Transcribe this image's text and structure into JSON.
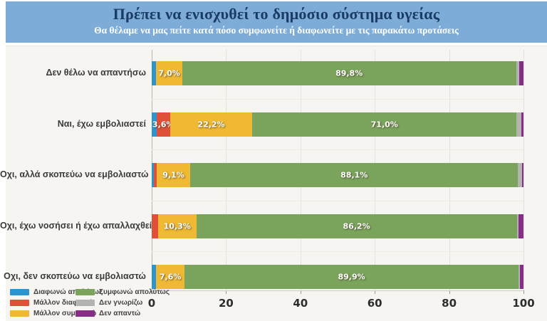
{
  "header": {
    "title": "Πρέπει να ενισχυθεί το δημόσιο σύστημα υγείας",
    "subtitle": "Θα θέλαμε να μας πείτε κατά πόσο συμφωνείτε ή διαφωνείτε με τις παρακάτω προτάσεις",
    "band_color": "#7CACD7",
    "title_color": "#1A3C64",
    "subtitle_color": "#FFFFFF"
  },
  "chart_data": {
    "type": "bar",
    "orientation": "horizontal_stacked",
    "title": "Πρέπει να ενισχυθεί το δημόσιο σύστημα υγείας",
    "xlabel": "",
    "ylabel": "",
    "xlim": [
      0,
      100
    ],
    "x_ticks": [
      0,
      20,
      40,
      60,
      80,
      100
    ],
    "grid": true,
    "legend_position": "bottom-left",
    "categories": [
      "Δεν θέλω να απαντήσω",
      "Ναι, έχω εμβολιαστεί",
      "Οχι, αλλά σκοπεύω να εμβολιαστώ",
      "Οχι, έχω νοσήσει ή έχω απαλλαχθεί",
      "Οχι, δεν σκοπεύω να εμβολιαστώ"
    ],
    "series": [
      {
        "name": "Διαφωνώ απολύτως",
        "color": "#2C95CF",
        "values": [
          1.2,
          1.3,
          0.5,
          0.0,
          1.2
        ]
      },
      {
        "name": "Μάλλον διαφωνώ",
        "color": "#E05039",
        "values": [
          0.0,
          3.6,
          0.8,
          1.7,
          0.0
        ]
      },
      {
        "name": "Μάλλον συμφωνώ",
        "color": "#EFB933",
        "values": [
          7.0,
          22.2,
          9.1,
          10.3,
          7.6
        ]
      },
      {
        "name": "Συμφωνώ απολύτως",
        "color": "#7AA45B",
        "values": [
          89.8,
          71.0,
          88.1,
          86.2,
          89.9
        ]
      },
      {
        "name": "Δεν γνωρίζω",
        "color": "#B3B3B2",
        "values": [
          0.8,
          1.4,
          1.2,
          0.5,
          0.3
        ]
      },
      {
        "name": "Δεν απαντώ",
        "color": "#852D87",
        "values": [
          1.2,
          0.5,
          0.3,
          1.3,
          1.0
        ]
      }
    ],
    "segment_labels": [
      [
        "",
        "",
        "7,0%",
        "89,8%",
        "",
        ""
      ],
      [
        "",
        "3,6%",
        "22,2%",
        "71,0%",
        "",
        ""
      ],
      [
        "",
        "",
        "9,1%",
        "88,1%",
        "",
        ""
      ],
      [
        "",
        "",
        "10,3%",
        "86,2%",
        "",
        ""
      ],
      [
        "",
        "",
        "7,6%",
        "89,9%",
        "",
        ""
      ]
    ]
  }
}
